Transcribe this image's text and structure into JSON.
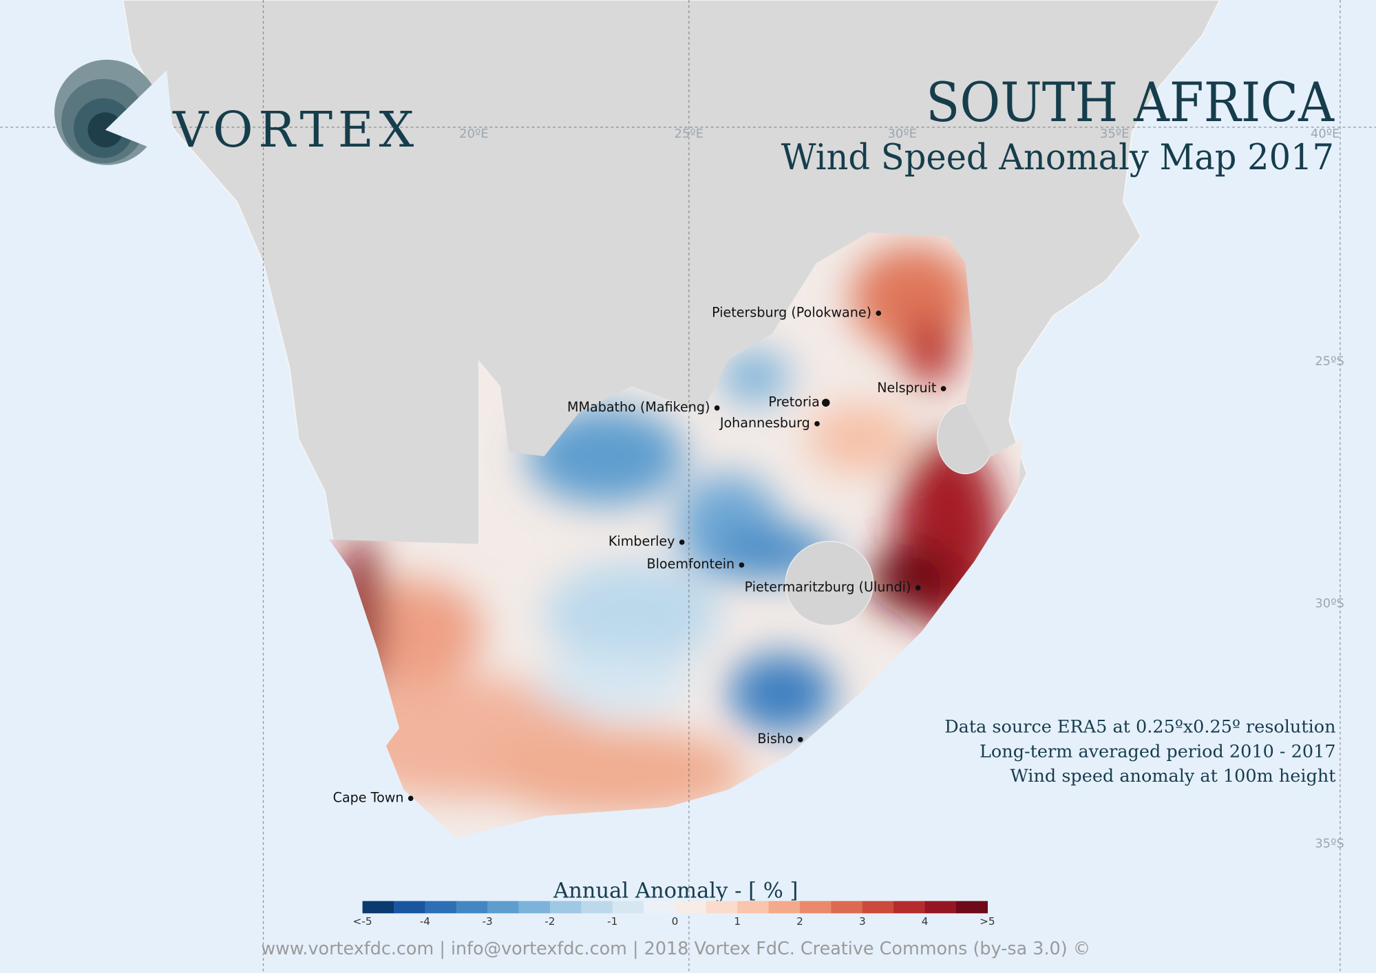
{
  "header": {
    "brand": "VORTEX",
    "title": "SOUTH AFRICA",
    "subtitle": "Wind Speed Anomaly Map 2017"
  },
  "graticule": {
    "longitudes": [
      "20ºE",
      "25ºE",
      "30ºE",
      "35ºE",
      "40ºE"
    ],
    "latitudes": [
      "25ºS",
      "30ºS",
      "35ºS"
    ]
  },
  "cities": [
    {
      "label": "Pietersburg (Polokwane)"
    },
    {
      "label": "Pretoria"
    },
    {
      "label": "Nelspruit"
    },
    {
      "label": "MMabatho (Mafikeng)"
    },
    {
      "label": "Johannesburg"
    },
    {
      "label": "Kimberley"
    },
    {
      "label": "Bloemfontein"
    },
    {
      "label": "Pietermaritzburg (Ulundi)"
    },
    {
      "label": "Bisho"
    },
    {
      "label": "Cape Town"
    }
  ],
  "notes": [
    "Data source ERA5 at 0.25ºx0.25º  resolution",
    "Long-term averaged period 2010 - 2017",
    "Wind  speed anomaly at 100m height"
  ],
  "legend": {
    "title": "Annual Anomaly  - [ % ]",
    "ticks": [
      "<-5",
      "-4",
      "-3",
      "-2",
      "-1",
      "0",
      "1",
      "2",
      "3",
      "4",
      ">5"
    ],
    "colors": [
      "#0a3a6e",
      "#1a56a0",
      "#2c6fb5",
      "#4287c4",
      "#5e9ecf",
      "#7db3da",
      "#9ec8e4",
      "#bcd9ec",
      "#d6e7f2",
      "#ebf1f6",
      "#f8ece6",
      "#fbdccc",
      "#f9c5ad",
      "#f4a98a",
      "#ea8a6b",
      "#dc6a50",
      "#cb4a3c",
      "#b52c2d",
      "#951622",
      "#6e0a19"
    ]
  },
  "footer": "www.vortexfdc.com | info@vortexfdc.com | 2018 Vortex FdC.  Creative Commons (by-sa 3.0) ©"
}
